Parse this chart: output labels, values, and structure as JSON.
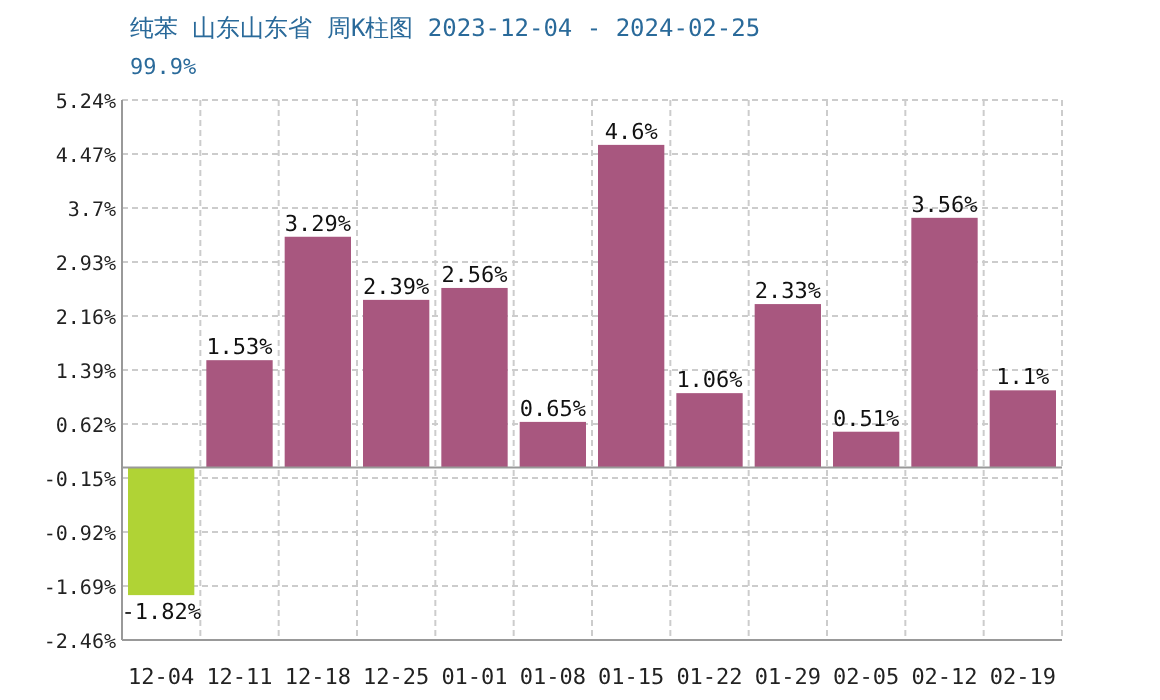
{
  "chart_data": {
    "type": "bar",
    "title": "纯苯 山东山东省 周K柱图 2023-12-04 - 2024-02-25",
    "subtitle": "99.9%",
    "categories": [
      "12-04",
      "12-11",
      "12-18",
      "12-25",
      "01-01",
      "01-08",
      "01-15",
      "01-22",
      "01-29",
      "02-05",
      "02-12",
      "02-19"
    ],
    "values": [
      -1.82,
      1.53,
      3.29,
      2.39,
      2.56,
      0.65,
      4.6,
      1.06,
      2.33,
      0.51,
      3.56,
      1.1
    ],
    "colors": [
      "#b0d335",
      "#a8577f",
      "#a8577f",
      "#a8577f",
      "#a8577f",
      "#a8577f",
      "#a8577f",
      "#a8577f",
      "#a8577f",
      "#a8577f",
      "#a8577f",
      "#a8577f"
    ],
    "value_labels": [
      "-1.82%",
      "1.53%",
      "3.29%",
      "2.39%",
      "2.56%",
      "0.65%",
      "4.6%",
      "1.06%",
      "2.33%",
      "0.51%",
      "3.56%",
      "1.1%"
    ],
    "ylim": [
      -2.46,
      5.24
    ],
    "yticks": [
      {
        "value": 5.24,
        "label": "5.24%"
      },
      {
        "value": 4.47,
        "label": "4.47%"
      },
      {
        "value": 3.7,
        "label": "3.7%"
      },
      {
        "value": 2.93,
        "label": "2.93%"
      },
      {
        "value": 2.16,
        "label": "2.16%"
      },
      {
        "value": 1.39,
        "label": "1.39%"
      },
      {
        "value": 0.62,
        "label": "0.62%"
      },
      {
        "value": -0.15,
        "label": "-0.15%"
      },
      {
        "value": -0.92,
        "label": "-0.92%"
      },
      {
        "value": -1.69,
        "label": "-1.69%"
      },
      {
        "value": -2.46,
        "label": "-2.46%"
      }
    ],
    "grid": true
  }
}
